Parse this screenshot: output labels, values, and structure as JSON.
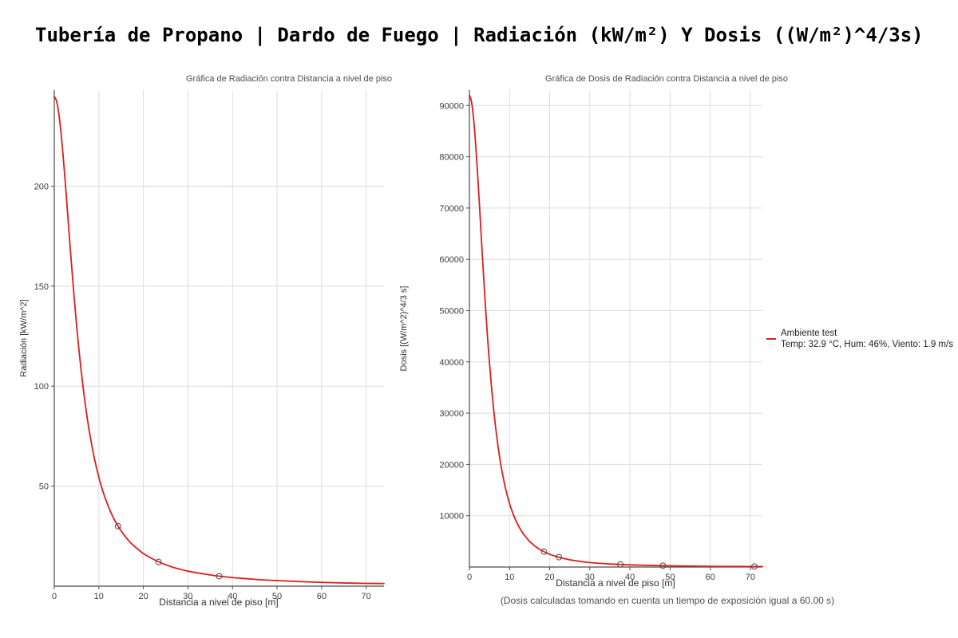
{
  "page": {
    "title": "Tubería de Propano | Dardo de Fuego | Radiación (kW/m²) Y Dosis ((W/m²)^4/3s)"
  },
  "colors": {
    "curve": "#e01b1b",
    "grid": "#dcdcdc",
    "axis": "#4a4a4a",
    "tick_text": "#3d3d3d",
    "marker_stroke": "#4a4a4a",
    "background": "#ffffff"
  },
  "legend": {
    "series_label": "Ambiente test",
    "conditions": "Temp: 32.9 °C, Hum: 46%, Viento: 1.9 m/s",
    "swatch_color": "#e01b1b"
  },
  "footnote": "(Dosis calculadas tomando en cuenta un tiempo de exposición igual a 60.00 s)",
  "chart_data": [
    {
      "type": "line",
      "title": "Gráfica de Radiación contra Distancia a nivel de piso",
      "xlabel": "Distancia a nivel de piso [m]",
      "ylabel": "Radiación [kW/m^2]",
      "xlim": [
        0,
        74
      ],
      "ylim": [
        0,
        248
      ],
      "xticks": [
        0,
        10,
        20,
        30,
        40,
        50,
        60,
        70
      ],
      "yticks": [
        50,
        100,
        150,
        200
      ],
      "grid": true,
      "legend_position": "none",
      "series": [
        {
          "name": "Ambiente test",
          "x": [
            0,
            0.5,
            1,
            1.5,
            2,
            2.5,
            3,
            3.5,
            4,
            4.5,
            5,
            5.5,
            6,
            6.5,
            7,
            7.5,
            8,
            9,
            10,
            11,
            12,
            13,
            14,
            15,
            16,
            17,
            18,
            19,
            20,
            22,
            24,
            26,
            28,
            30,
            33,
            36,
            40,
            44,
            48,
            52,
            56,
            60,
            65,
            70,
            74
          ],
          "y": [
            244.8,
            242.6,
            236.5,
            226.9,
            214.7,
            200.9,
            186.2,
            171.4,
            157.0,
            143.3,
            130.6,
            118.9,
            108.4,
            98.8,
            90.2,
            82.5,
            75.6,
            63.9,
            54.4,
            46.8,
            40.6,
            35.4,
            31.2,
            27.6,
            24.6,
            22.0,
            19.9,
            18.0,
            16.3,
            13.7,
            11.6,
            9.9,
            8.6,
            7.5,
            6.3,
            5.3,
            4.3,
            3.6,
            3.0,
            2.6,
            2.2,
            1.9,
            1.6,
            1.4,
            1.3
          ]
        }
      ],
      "markers": [
        {
          "x": 14.3,
          "y": 30.0
        },
        {
          "x": 23.4,
          "y": 12.1
        },
        {
          "x": 37.0,
          "y": 5.0
        }
      ]
    },
    {
      "type": "line",
      "title": "Gráfica de Dosis de Radiación contra Distancia a nivel de piso",
      "xlabel": "Distancia a nivel de piso [m]",
      "ylabel": "Dosis [(W/m^2)^4/3 s]",
      "xlim": [
        0,
        73
      ],
      "ylim": [
        0,
        93000
      ],
      "xticks": [
        0,
        10,
        20,
        30,
        40,
        50,
        60,
        70
      ],
      "yticks": [
        10000,
        20000,
        30000,
        40000,
        50000,
        60000,
        70000,
        80000,
        90000
      ],
      "grid": true,
      "legend_position": "right",
      "series": [
        {
          "name": "Ambiente test",
          "x": [
            0,
            0.5,
            1,
            1.5,
            2,
            2.5,
            3,
            3.5,
            4,
            4.5,
            5,
            5.5,
            6,
            6.5,
            7,
            7.5,
            8,
            9,
            10,
            11,
            12,
            13,
            14,
            15,
            16,
            17,
            18,
            19,
            20,
            22,
            24,
            26,
            28,
            30,
            33,
            36,
            40,
            44,
            48,
            52,
            56,
            60,
            65,
            70,
            73
          ],
          "y": [
            92000,
            90840,
            87750,
            83030,
            77150,
            70610,
            63800,
            57130,
            50810,
            44990,
            39760,
            35080,
            31020,
            27400,
            24280,
            21550,
            19180,
            15330,
            12360,
            10120,
            8370,
            6980,
            5890,
            5000,
            4290,
            3700,
            3230,
            2830,
            2480,
            1970,
            1580,
            1280,
            1060,
            880,
            700,
            554,
            419,
            331,
            260,
            215,
            172,
            141,
            112,
            94,
            86
          ]
        }
      ],
      "markers": [
        {
          "x": 18.6,
          "y": 3000
        },
        {
          "x": 22.3,
          "y": 1930
        },
        {
          "x": 37.6,
          "y": 500
        },
        {
          "x": 48.2,
          "y": 260
        },
        {
          "x": 71.0,
          "y": 91
        }
      ]
    }
  ]
}
